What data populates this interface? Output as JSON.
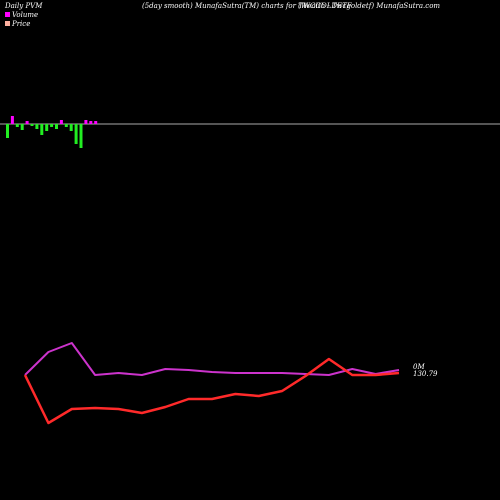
{
  "header": {
    "left": "Daily PVM",
    "center": "(5day smooth) MunafaSutra(TM) charts for TWCGOLDETF",
    "right": "(Wealth - Twcgoldetf) MunafaSutra.com"
  },
  "legend": {
    "volume_label": "Volume",
    "price_label": "Price",
    "volume_color": "#ff00ff",
    "price_color": "#ffb0a0"
  },
  "chart_data": {
    "type": "line",
    "volume_bars": [
      -14,
      8,
      -3,
      -6,
      3,
      -2,
      -5,
      -11,
      -7,
      -3,
      -5,
      4,
      -3,
      -7,
      -20,
      -24,
      4,
      3,
      3
    ],
    "series": [
      {
        "color": "#cc33cc",
        "values": [
          375,
          352,
          343,
          375,
          373,
          375,
          369,
          370,
          372,
          373,
          373,
          373,
          374,
          375,
          369,
          374,
          370
        ]
      },
      {
        "color": "#ff2a2a",
        "values": [
          375,
          423,
          409,
          408,
          409,
          413,
          407,
          399,
          399,
          394,
          396,
          391,
          376,
          359,
          375,
          375,
          373
        ]
      }
    ],
    "annotations": {
      "zero_label": "0M",
      "price_label": "130.79"
    }
  }
}
